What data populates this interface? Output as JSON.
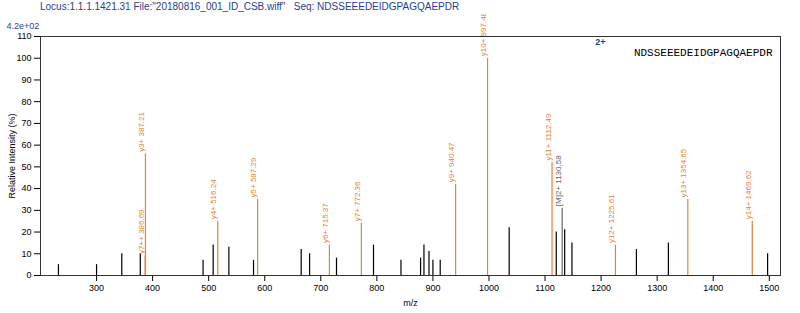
{
  "chart_data": {
    "type": "stem",
    "title": "Locus:1.1.1.1421.31 File:\"20180816_001_ID_CSB.wiff\"   Seq: NDSSEEEDEIDGPAGQAEPDR",
    "intensity_max_label": "4.2e+02",
    "charge_label": "2+",
    "sequence": "NDSSEEEDEIDGPAGQAEPDR",
    "x_label": "m/z",
    "y_label": "Relative Intensity (%)",
    "x": [
      232,
      300,
      345,
      378,
      386.69,
      387.21,
      490,
      508,
      516.24,
      536,
      580,
      587.29,
      665,
      680,
      715.37,
      728,
      772.36,
      794,
      843,
      878,
      884,
      893,
      900,
      913,
      940.47,
      997.48,
      1036,
      1112.49,
      1120,
      1130.58,
      1135,
      1148,
      1225.61,
      1263,
      1320,
      1354.65,
      1469.62,
      1497
    ],
    "values": [
      5,
      5,
      10,
      10,
      9,
      56,
      7,
      14,
      25,
      13,
      7,
      35,
      12,
      10,
      14,
      8,
      24,
      14,
      7,
      8,
      14,
      11,
      7,
      7,
      42,
      100,
      22,
      52,
      20,
      31,
      21,
      15,
      14,
      12,
      15,
      35,
      25,
      10
    ],
    "colors": [
      "#000000",
      "#000000",
      "#000000",
      "#000000",
      "#e8803a",
      "#e8803a",
      "#000000",
      "#000000",
      "#e8803a",
      "#000000",
      "#000000",
      "#e8803a",
      "#000000",
      "#000000",
      "#e8803a",
      "#000000",
      "#e8803a",
      "#000000",
      "#000000",
      "#000000",
      "#000000",
      "#000000",
      "#000000",
      "#000000",
      "#e8803a",
      "#e8803a",
      "#000000",
      "#e8803a",
      "#000000",
      "#666666",
      "#000000",
      "#000000",
      "#e8803a",
      "#000000",
      "#000000",
      "#e8803a",
      "#e8803a",
      "#000000"
    ],
    "annotations": [
      {
        "x": 386.69,
        "y": 9,
        "text": "y7++ 386.69"
      },
      {
        "x": 387.21,
        "y": 56,
        "text": "y3+ 387.21"
      },
      {
        "x": 516.24,
        "y": 25,
        "text": "y4+ 516.24"
      },
      {
        "x": 587.29,
        "y": 35,
        "text": "y5+ 587.29"
      },
      {
        "x": 715.37,
        "y": 14,
        "text": "y6+ 715.37"
      },
      {
        "x": 772.36,
        "y": 24,
        "text": "y7+ 772.36"
      },
      {
        "x": 940.47,
        "y": 42,
        "text": "y9+ 940.47"
      },
      {
        "x": 997.48,
        "y": 100,
        "text": "y10+ 997.48"
      },
      {
        "x": 1112.49,
        "y": 52,
        "text": "y11+ 1112.49"
      },
      {
        "x": 1130.58,
        "y": 31,
        "text": "[M]2+ 1130.58"
      },
      {
        "x": 1225.61,
        "y": 14,
        "text": "y12+ 1225.61"
      },
      {
        "x": 1354.65,
        "y": 35,
        "text": "y13+ 1354.65"
      },
      {
        "x": 1469.62,
        "y": 25,
        "text": "y14+ 1469.62"
      }
    ],
    "xlim": [
      200,
      1520
    ],
    "xticks": [
      300,
      400,
      500,
      600,
      700,
      800,
      900,
      1000,
      1100,
      1200,
      1300,
      1400,
      1500
    ],
    "ylim": [
      0,
      110
    ],
    "yticks": [
      0,
      10,
      20,
      30,
      40,
      50,
      60,
      70,
      80,
      90,
      100,
      110
    ],
    "grid": false
  }
}
